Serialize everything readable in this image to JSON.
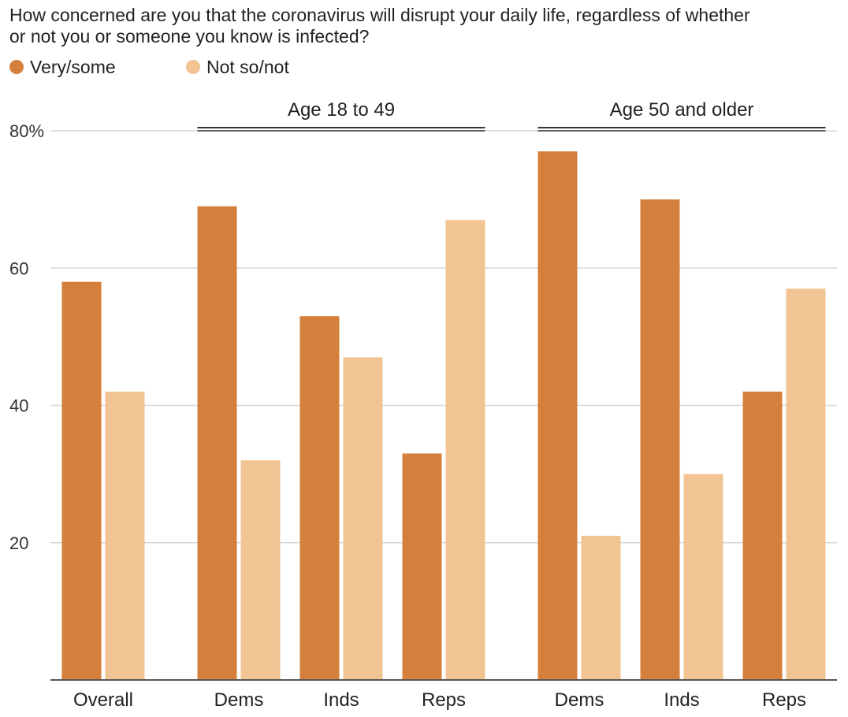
{
  "question_line1": "How concerned are you that the coronavirus will disrupt your daily life, regardless of whether",
  "question_line2": "or not you or someone you know is infected?",
  "chart_data": {
    "type": "bar",
    "title": "How concerned are you that the coronavirus will disrupt your daily life, regardless of whether or not you or someone you know is infected?",
    "xlabel": "",
    "ylabel": "",
    "ylim": [
      0,
      80
    ],
    "yticks": [
      20,
      40,
      60,
      80
    ],
    "ytick_labels": [
      "20",
      "40",
      "60",
      "80%"
    ],
    "grid": true,
    "legend_position": "top-left",
    "categories": [
      "Overall",
      "Dems",
      "Inds",
      "Reps",
      "Dems",
      "Inds",
      "Reps"
    ],
    "groups": [
      {
        "label": "Age 18 to 49",
        "categories": [
          1,
          2,
          3
        ]
      },
      {
        "label": "Age 50 and older",
        "categories": [
          4,
          5,
          6
        ]
      }
    ],
    "series": [
      {
        "name": "Very/some",
        "color": "#d4803c",
        "values": [
          58,
          69,
          53,
          33,
          77,
          70,
          42
        ]
      },
      {
        "name": "Not so/not",
        "color": "#f2c493",
        "values": [
          42,
          32,
          47,
          67,
          21,
          30,
          57
        ]
      }
    ]
  }
}
